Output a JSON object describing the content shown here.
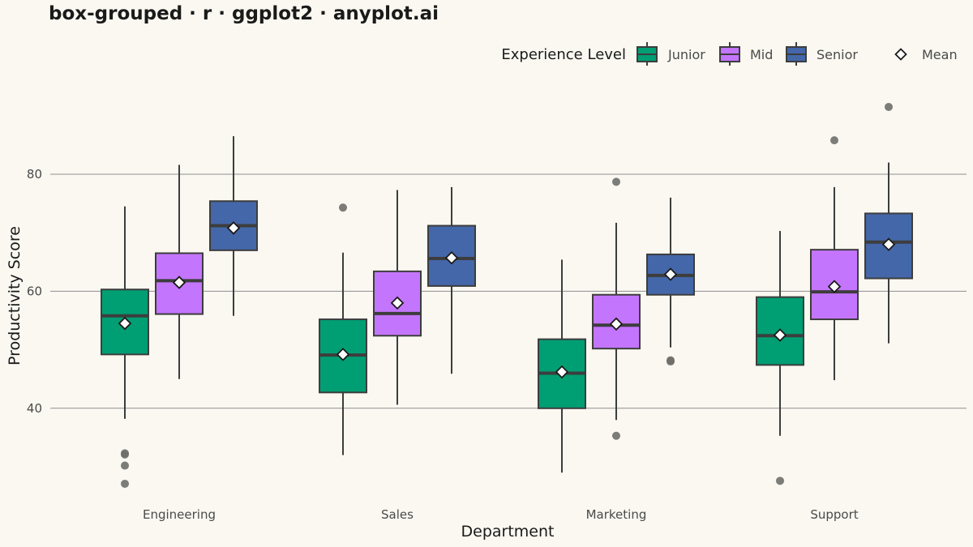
{
  "title": "box-grouped · r · ggplot2 · anyplot.ai",
  "chart_data": {
    "type": "box",
    "title": "box-grouped · r · ggplot2 · anyplot.ai",
    "xlabel": "Department",
    "ylabel": "Productivity Score",
    "categories": [
      "Engineering",
      "Sales",
      "Marketing",
      "Support"
    ],
    "yticks": [
      40,
      60,
      80
    ],
    "ylim": [
      24.4,
      96.0
    ],
    "grid": "horizontal major",
    "legend": {
      "title": "Experience Level",
      "position": "top-right",
      "items": [
        "Junior",
        "Mid",
        "Senior"
      ],
      "mean_label": "Mean"
    },
    "series": [
      {
        "name": "Junior",
        "color": "#009E73",
        "boxes": [
          {
            "category": "Engineering",
            "min": 38.2,
            "q1": 49.2,
            "median": 55.8,
            "q3": 60.3,
            "max": 74.5,
            "mean": 54.5,
            "outliers": [
              32.3,
              32.1,
              30.2,
              27.1
            ]
          },
          {
            "category": "Sales",
            "min": 32.0,
            "q1": 42.7,
            "median": 49.1,
            "q3": 55.2,
            "max": 66.6,
            "mean": 49.2,
            "outliers": [
              74.3
            ]
          },
          {
            "category": "Marketing",
            "min": 29.0,
            "q1": 40.0,
            "median": 46.0,
            "q3": 51.8,
            "max": 65.4,
            "mean": 46.2,
            "outliers": []
          },
          {
            "category": "Support",
            "min": 35.3,
            "q1": 47.4,
            "median": 52.4,
            "q3": 59.0,
            "max": 70.3,
            "mean": 52.5,
            "outliers": [
              27.6
            ]
          }
        ]
      },
      {
        "name": "Mid",
        "color": "#C475FD",
        "boxes": [
          {
            "category": "Engineering",
            "min": 45.0,
            "q1": 56.1,
            "median": 61.8,
            "q3": 66.5,
            "max": 81.6,
            "mean": 61.5,
            "outliers": []
          },
          {
            "category": "Sales",
            "min": 40.6,
            "q1": 52.4,
            "median": 56.2,
            "q3": 63.4,
            "max": 77.3,
            "mean": 58.0,
            "outliers": []
          },
          {
            "category": "Marketing",
            "min": 38.0,
            "q1": 50.2,
            "median": 54.2,
            "q3": 59.4,
            "max": 71.7,
            "mean": 54.4,
            "outliers": [
              78.7,
              35.3
            ]
          },
          {
            "category": "Support",
            "min": 44.8,
            "q1": 55.2,
            "median": 59.9,
            "q3": 67.1,
            "max": 77.8,
            "mean": 60.8,
            "outliers": [
              85.8
            ]
          }
        ]
      },
      {
        "name": "Senior",
        "color": "#4467A9",
        "boxes": [
          {
            "category": "Engineering",
            "min": 55.8,
            "q1": 67.0,
            "median": 71.2,
            "q3": 75.4,
            "max": 86.5,
            "mean": 70.8,
            "outliers": []
          },
          {
            "category": "Sales",
            "min": 45.9,
            "q1": 60.9,
            "median": 65.6,
            "q3": 71.2,
            "max": 77.8,
            "mean": 65.7,
            "outliers": []
          },
          {
            "category": "Marketing",
            "min": 50.4,
            "q1": 59.4,
            "median": 62.7,
            "q3": 66.3,
            "max": 76.0,
            "mean": 62.9,
            "outliers": [
              48.2,
              48.0
            ]
          },
          {
            "category": "Support",
            "min": 51.1,
            "q1": 62.2,
            "median": 68.4,
            "q3": 73.3,
            "max": 82.0,
            "mean": 68.0,
            "outliers": [
              91.5
            ]
          }
        ]
      }
    ]
  }
}
